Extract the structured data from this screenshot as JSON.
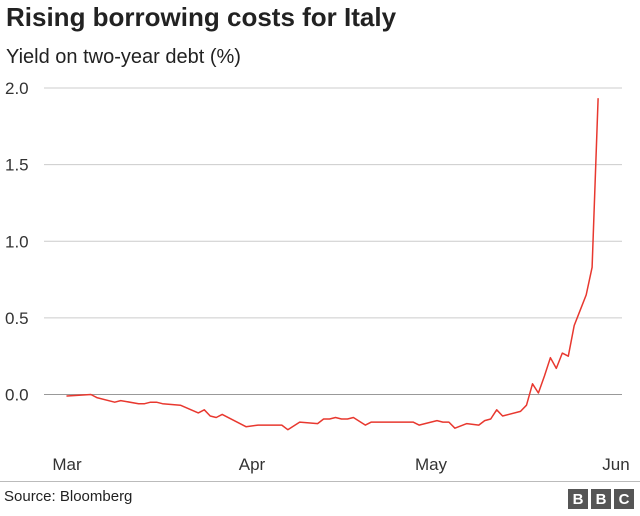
{
  "chart_data": {
    "type": "line",
    "title": "Rising borrowing costs for Italy",
    "subtitle": "Yield on two-year debt (%)",
    "xlabel": "",
    "ylabel": "",
    "x_tick_labels": [
      "Mar",
      "Apr",
      "May",
      "Jun"
    ],
    "y_ticks": [
      {
        "value": 0.0,
        "label": "0.0"
      },
      {
        "value": 0.5,
        "label": "0.5"
      },
      {
        "value": 1.0,
        "label": "1.0"
      },
      {
        "value": 1.5,
        "label": "1.5"
      },
      {
        "value": 2.0,
        "label": "2.0"
      }
    ],
    "ylim": [
      -0.4,
      2.0
    ],
    "xlim": [
      "2018-03-01",
      "2018-06-01"
    ],
    "grid": "horizontal",
    "legend": "none",
    "line_color": "#e8382f",
    "series": [
      {
        "x": [
          "2018-03-01",
          "2018-03-05",
          "2018-03-06",
          "2018-03-09",
          "2018-03-10",
          "2018-03-13",
          "2018-03-14",
          "2018-03-15",
          "2018-03-16",
          "2018-03-17",
          "2018-03-20",
          "2018-03-23",
          "2018-03-24",
          "2018-03-25",
          "2018-03-26",
          "2018-03-27",
          "2018-03-31",
          "2018-04-02",
          "2018-04-06",
          "2018-04-07",
          "2018-04-09",
          "2018-04-12",
          "2018-04-13",
          "2018-04-14",
          "2018-04-15",
          "2018-04-16",
          "2018-04-17",
          "2018-04-18",
          "2018-04-20",
          "2018-04-21",
          "2018-04-22",
          "2018-04-23",
          "2018-04-28",
          "2018-04-29",
          "2018-04-30",
          "2018-05-02",
          "2018-05-03",
          "2018-05-04",
          "2018-05-05",
          "2018-05-07",
          "2018-05-09",
          "2018-05-10",
          "2018-05-11",
          "2018-05-12",
          "2018-05-13",
          "2018-05-16",
          "2018-05-17",
          "2018-05-18",
          "2018-05-19",
          "2018-05-20",
          "2018-05-21",
          "2018-05-22",
          "2018-05-23",
          "2018-05-24",
          "2018-05-25",
          "2018-05-26",
          "2018-05-27",
          "2018-05-28",
          "2018-05-29"
        ],
        "values": [
          -0.01,
          0.0,
          -0.02,
          -0.05,
          -0.04,
          -0.06,
          -0.06,
          -0.05,
          -0.05,
          -0.06,
          -0.07,
          -0.12,
          -0.1,
          -0.14,
          -0.15,
          -0.13,
          -0.21,
          -0.2,
          -0.2,
          -0.23,
          -0.18,
          -0.19,
          -0.16,
          -0.16,
          -0.15,
          -0.16,
          -0.16,
          -0.15,
          -0.2,
          -0.18,
          -0.18,
          -0.18,
          -0.18,
          -0.2,
          -0.19,
          -0.17,
          -0.18,
          -0.18,
          -0.22,
          -0.19,
          -0.2,
          -0.17,
          -0.16,
          -0.1,
          -0.14,
          -0.11,
          -0.07,
          0.07,
          0.01,
          0.12,
          0.24,
          0.17,
          0.27,
          0.25,
          0.45,
          0.55,
          0.65,
          0.83,
          1.93
        ]
      }
    ]
  },
  "source": "Source: Bloomberg",
  "logo": {
    "letters": [
      "B",
      "B",
      "C"
    ]
  }
}
